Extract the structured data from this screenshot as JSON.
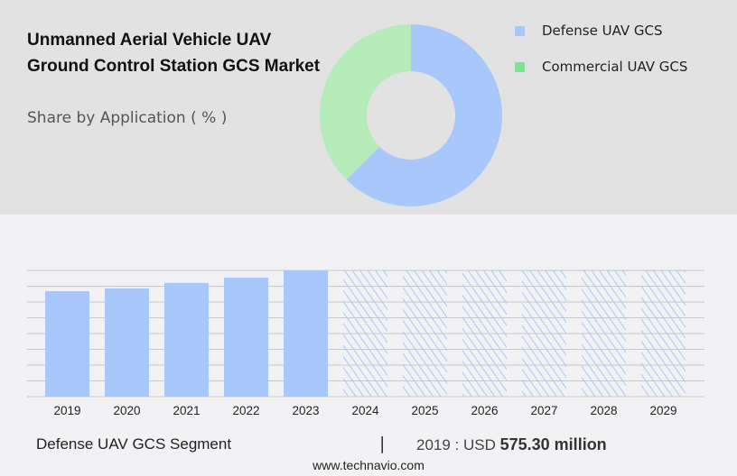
{
  "header": {
    "title": "Unmanned Aerial Vehicle UAV Ground Control Station GCS Market",
    "subtitle": "Share by Application ( % )"
  },
  "chart_data": [
    {
      "type": "pie",
      "variant": "donut",
      "categories": [
        "Defense UAV GCS",
        "Commercial UAV GCS"
      ],
      "values": [
        62.5,
        37.5
      ],
      "colors": [
        "#a8c8fc",
        "#b5ecb9"
      ],
      "legend_colors": [
        "#a8c8fc",
        "#7ee39a"
      ],
      "legend": "top-right"
    },
    {
      "type": "bar",
      "categories": [
        "2019",
        "2020",
        "2021",
        "2022",
        "2023",
        "2024",
        "2025",
        "2026",
        "2027",
        "2028",
        "2029"
      ],
      "values": [
        575.3,
        590,
        620,
        649,
        688,
        null,
        null,
        null,
        null,
        null,
        null
      ],
      "forecast": [
        false,
        false,
        false,
        false,
        false,
        true,
        true,
        true,
        true,
        true,
        true
      ],
      "ylim": [
        0,
        688
      ],
      "grid": true,
      "color": "#a8c8fc",
      "unit": "USD million"
    }
  ],
  "footer": {
    "segment": "Defense UAV GCS Segment",
    "separator": "|",
    "value_prefix": "2019 : USD",
    "value": "575.30 million",
    "site": "www.technavio.com"
  }
}
